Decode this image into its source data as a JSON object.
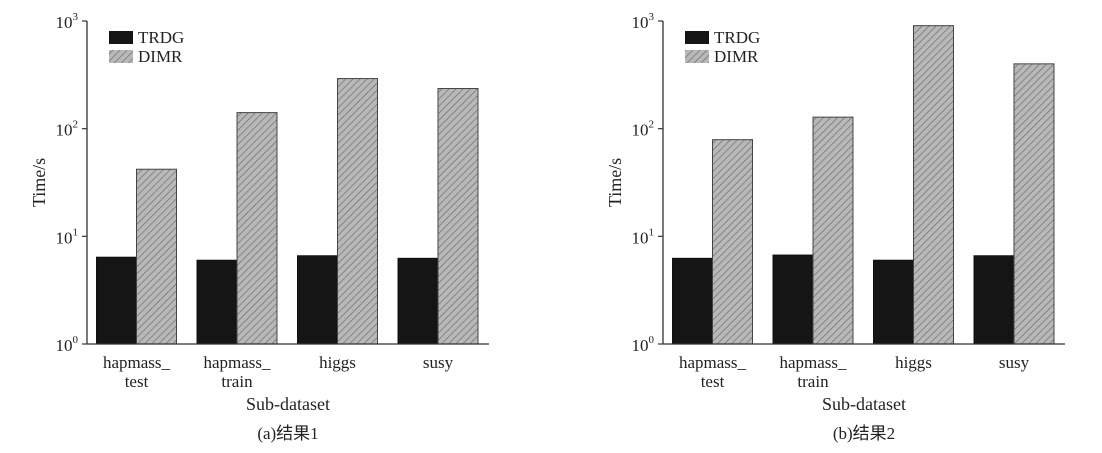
{
  "chart_data": [
    {
      "type": "bar",
      "caption": "(a)结果1",
      "xlabel": "Sub-dataset",
      "ylabel": "Time/s",
      "yscale": "log",
      "ylim": [
        1,
        1000
      ],
      "yticks": [
        {
          "base": "10",
          "exp": "0"
        },
        {
          "base": "10",
          "exp": "1"
        },
        {
          "base": "10",
          "exp": "2"
        },
        {
          "base": "10",
          "exp": "3"
        }
      ],
      "categories": [
        [
          "hapmass_",
          "test"
        ],
        [
          "hapmass_",
          "train"
        ],
        [
          "higgs"
        ],
        [
          "susy"
        ]
      ],
      "legend_position": "top-left",
      "series": [
        {
          "name": "TRDG",
          "color": "#151515",
          "values": [
            6.4,
            6.0,
            6.6,
            6.25
          ]
        },
        {
          "name": "DIMR",
          "color": "#b3b3b3",
          "hatch": true,
          "values": [
            42,
            141,
            292,
            236
          ]
        }
      ]
    },
    {
      "type": "bar",
      "caption": "(b)结果2",
      "xlabel": "Sub-dataset",
      "ylabel": "Time/s",
      "yscale": "log",
      "ylim": [
        1,
        1000
      ],
      "yticks": [
        {
          "base": "10",
          "exp": "0"
        },
        {
          "base": "10",
          "exp": "1"
        },
        {
          "base": "10",
          "exp": "2"
        },
        {
          "base": "10",
          "exp": "3"
        }
      ],
      "categories": [
        [
          "hapmass_",
          "test"
        ],
        [
          "hapmass_",
          "train"
        ],
        [
          "higgs"
        ],
        [
          "susy"
        ]
      ],
      "legend_position": "top-left",
      "series": [
        {
          "name": "TRDG",
          "color": "#151515",
          "values": [
            6.25,
            6.7,
            6.0,
            6.6
          ]
        },
        {
          "name": "DIMR",
          "color": "#b3b3b3",
          "hatch": true,
          "values": [
            79,
            128,
            905,
            400
          ]
        }
      ]
    }
  ]
}
